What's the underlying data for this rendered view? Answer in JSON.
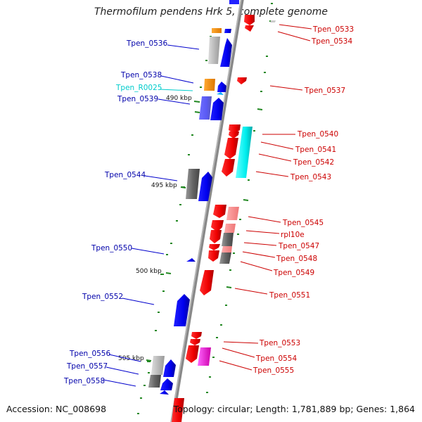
{
  "title": "Thermofilum pendens Hrk 5, complete genome",
  "accession": "Accession: NC_008698",
  "topology": "Topology: circular; Length: 1,781,889 bp; Genes: 1,864",
  "ruler_labels": [
    "490 kbp",
    "495 kbp",
    "500 kbp",
    "505 kbp"
  ],
  "left_labels": [
    "Tpen_0536",
    "Tpen_0538",
    "Tpen_R0025",
    "Tpen_0539",
    "Tpen_0544",
    "Tpen_0550",
    "Tpen_0552",
    "Tpen_0556",
    "Tpen_0557",
    "Tpen_0558"
  ],
  "right_labels": [
    "Tpen_0533",
    "Tpen_0534",
    "Tpen_0537",
    "Tpen_0540",
    "Tpen_0541",
    "Tpen_0542",
    "Tpen_0543",
    "Tpen_0545",
    "rpl10e",
    "Tpen_0547",
    "Tpen_0548",
    "Tpen_0549",
    "Tpen_0551",
    "Tpen_0553",
    "Tpen_0554",
    "Tpen_0555"
  ],
  "colors": {
    "forward_strand": "#0000ff",
    "reverse_strand": "#ff0000",
    "rna_gene": "#00ffff",
    "left_label_text": "#0000aa",
    "right_label_text": "#cc0000",
    "rna_label_text": "#00cccc",
    "tick": "#228822",
    "backbone": "#888888"
  }
}
